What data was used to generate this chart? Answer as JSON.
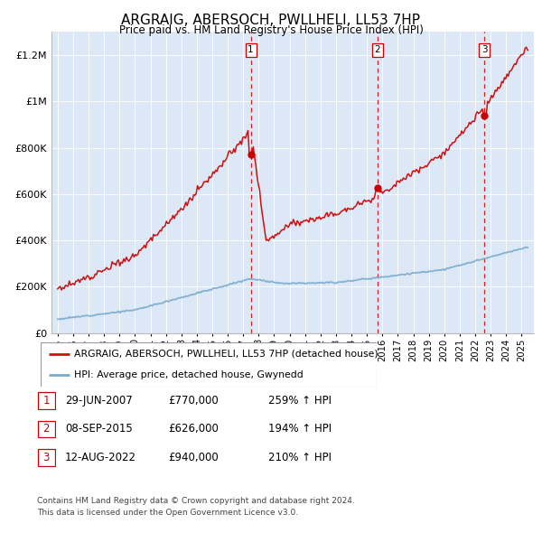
{
  "title": "ARGRAIG, ABERSOCH, PWLLHELI, LL53 7HP",
  "subtitle": "Price paid vs. HM Land Registry's House Price Index (HPI)",
  "ylabel_ticks": [
    "£0",
    "£200K",
    "£400K",
    "£600K",
    "£800K",
    "£1M",
    "£1.2M"
  ],
  "ytick_values": [
    0,
    200000,
    400000,
    600000,
    800000,
    1000000,
    1200000
  ],
  "ylim": [
    0,
    1300000
  ],
  "xlim_start": 1994.6,
  "xlim_end": 2025.8,
  "sale_dates": [
    2007.49,
    2015.68,
    2022.61
  ],
  "sale_prices": [
    770000,
    626000,
    940000
  ],
  "sale_labels": [
    "1",
    "2",
    "3"
  ],
  "vline_color": "#cc0000",
  "sale_marker_color": "#cc0000",
  "hpi_color": "#7aabcf",
  "property_color": "#cc1111",
  "background_plot": "#dce8f5",
  "legend_label_property": "ARGRAIG, ABERSOCH, PWLLHELI, LL53 7HP (detached house)",
  "legend_label_hpi": "HPI: Average price, detached house, Gwynedd",
  "table_rows": [
    [
      "1",
      "29-JUN-2007",
      "£770,000",
      "259% ↑ HPI"
    ],
    [
      "2",
      "08-SEP-2015",
      "£626,000",
      "194% ↑ HPI"
    ],
    [
      "3",
      "12-AUG-2022",
      "£940,000",
      "210% ↑ HPI"
    ]
  ],
  "footnote1": "Contains HM Land Registry data © Crown copyright and database right 2024.",
  "footnote2": "This data is licensed under the Open Government Licence v3.0."
}
